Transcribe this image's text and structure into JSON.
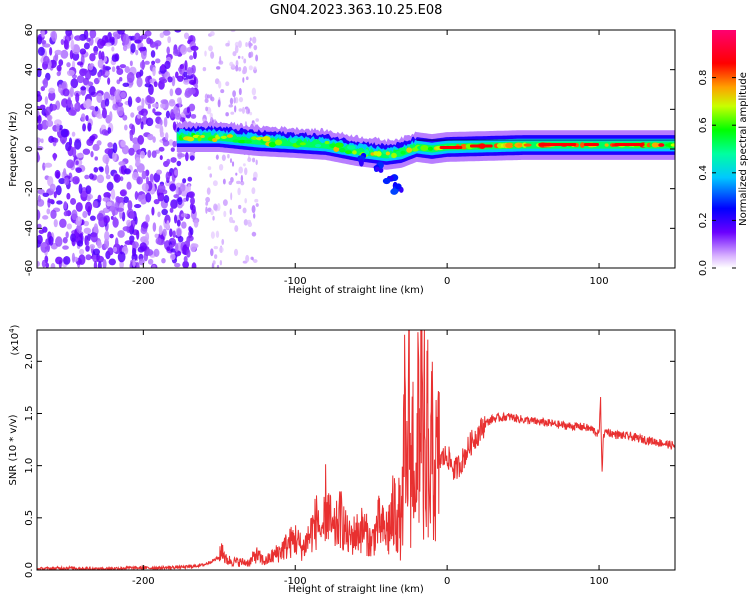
{
  "chart_data": [
    {
      "type": "heatmap",
      "title": "GN04.2023.363.10.25.E08",
      "xlabel": "Height of straight line (km)",
      "ylabel": "Frequency (Hz)",
      "xlim": [
        -270,
        150
      ],
      "ylim": [
        -60,
        60
      ],
      "x_ticks": [
        -200,
        -100,
        0,
        100
      ],
      "y_ticks": [
        -60,
        -40,
        -20,
        0,
        20,
        40,
        60
      ],
      "x_tick_labels": [
        "-200",
        "-100",
        "0",
        "100"
      ],
      "y_tick_labels": [
        "-60",
        "-40",
        "-20",
        "0",
        "20",
        "40",
        "60"
      ],
      "colorbar": {
        "label": "Normalized spectral amplitude",
        "range": [
          0,
          1
        ],
        "ticks": [
          0.0,
          0.2,
          0.4,
          0.6,
          0.8
        ],
        "tick_labels": [
          "0.0",
          "0.2",
          "0.4",
          "0.6",
          "0.8"
        ]
      },
      "features": {
        "noise_region_x": [
          -270,
          -165
        ],
        "sparse_noise_x": [
          -160,
          -125
        ],
        "band_center_trace": [
          [
            -175,
            6
          ],
          [
            -150,
            6
          ],
          [
            -125,
            4
          ],
          [
            -100,
            3
          ],
          [
            -80,
            2
          ],
          [
            -60,
            -1
          ],
          [
            -40,
            -3
          ],
          [
            -30,
            -2
          ],
          [
            -20,
            1
          ],
          [
            -10,
            0
          ],
          [
            0,
            1
          ],
          [
            50,
            2
          ],
          [
            100,
            2
          ],
          [
            150,
            2
          ]
        ],
        "low_frequency_branch": [
          [
            -55,
            -5
          ],
          [
            -45,
            -10
          ],
          [
            -37,
            -15
          ],
          [
            -32,
            -20
          ]
        ]
      }
    },
    {
      "type": "line",
      "xlabel": "Height of straight line (km)",
      "ylabel": "SNR (10 * v/v)",
      "scale_label": "(x10^4)",
      "xlim": [
        -270,
        150
      ],
      "ylim": [
        0,
        2.3
      ],
      "x_ticks": [
        -200,
        -100,
        0,
        100
      ],
      "y_ticks": [
        0.0,
        0.5,
        1.0,
        1.5,
        2.0
      ],
      "x_tick_labels": [
        "-200",
        "-100",
        "0",
        "100"
      ],
      "y_tick_labels": [
        "0.0",
        "0.5",
        "1.0",
        "1.5",
        "2.0"
      ],
      "color": "#e83030",
      "series": [
        {
          "x": [
            -270,
            -250,
            -230,
            -210,
            -190,
            -170,
            -160,
            -150,
            -148,
            -146,
            -140,
            -130,
            -126,
            -120,
            -110,
            -100,
            -95,
            -90,
            -85,
            -82,
            -80,
            -75,
            -70,
            -65,
            -60,
            -55,
            -50,
            -45,
            -40,
            -36,
            -33,
            -30,
            -28,
            -27,
            -25,
            -24,
            -22,
            -20,
            -19,
            -18,
            -17,
            -16,
            -15,
            -14,
            -13,
            -12,
            -10,
            -8,
            -5,
            0,
            5,
            10,
            15,
            20,
            25,
            30,
            40,
            50,
            60,
            70,
            80,
            90,
            95,
            100,
            101,
            102,
            103,
            105,
            110,
            120,
            130,
            140,
            150
          ],
          "y": [
            0.01,
            0.02,
            0.01,
            0.02,
            0.02,
            0.03,
            0.05,
            0.12,
            0.22,
            0.1,
            0.08,
            0.07,
            0.15,
            0.08,
            0.18,
            0.3,
            0.2,
            0.35,
            0.5,
            0.25,
            0.65,
            0.35,
            0.5,
            0.3,
            0.35,
            0.4,
            0.25,
            0.45,
            0.35,
            0.5,
            0.6,
            0.4,
            1.3,
            0.7,
            1.6,
            0.9,
            1.3,
            0.5,
            1.9,
            1.1,
            2.32,
            0.8,
            1.3,
            0.4,
            1.55,
            0.6,
            1.15,
            0.95,
            1.05,
            1.1,
            0.95,
            1.05,
            1.2,
            1.3,
            1.4,
            1.45,
            1.47,
            1.44,
            1.42,
            1.4,
            1.38,
            1.37,
            1.35,
            1.3,
            1.62,
            0.95,
            1.3,
            1.33,
            1.3,
            1.28,
            1.25,
            1.22,
            1.19
          ]
        }
      ]
    }
  ]
}
